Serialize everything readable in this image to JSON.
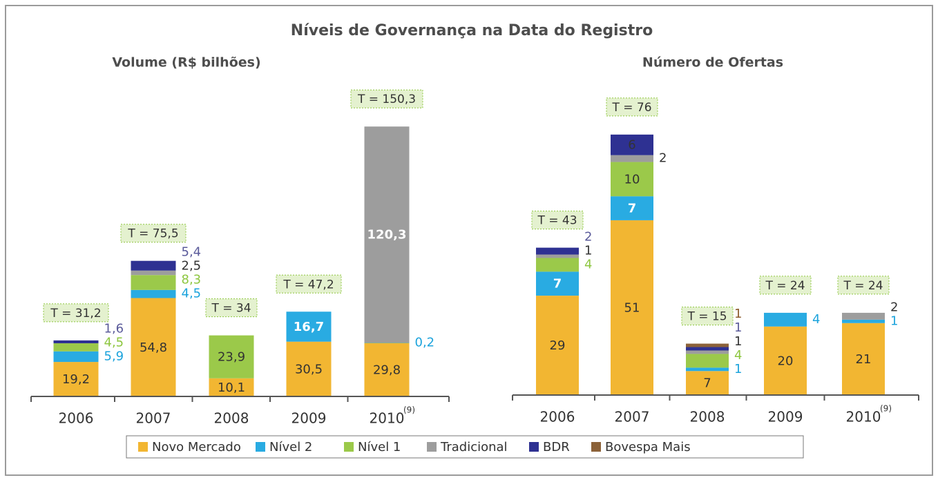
{
  "title": "Níveis de Governança na Data do Registro",
  "legend_position": "bottom",
  "chart_data": [
    {
      "type": "bar",
      "stacked": true,
      "title": "Volume (R$ bilhões)",
      "categories": [
        "2006",
        "2007",
        "2008",
        "2009",
        "2010"
      ],
      "category_superscripts": [
        null,
        null,
        null,
        null,
        "(9)"
      ],
      "ylim": [
        0,
        160
      ],
      "series": [
        {
          "name": "Novo Mercado",
          "color": "#f2b632",
          "values": [
            19.2,
            54.8,
            10.1,
            30.5,
            29.8
          ],
          "value_labels": [
            "19,2",
            "54,8",
            "10,1",
            "30,5",
            "29,8"
          ]
        },
        {
          "name": "Nível 2",
          "color": "#29abe2",
          "values": [
            5.9,
            4.5,
            null,
            16.7,
            0.2
          ],
          "value_labels": [
            "5,9",
            "4,5",
            null,
            "16,7",
            "0,2"
          ]
        },
        {
          "name": "Nível 1",
          "color": "#9bc94a",
          "values": [
            4.5,
            8.3,
            23.9,
            null,
            null
          ],
          "value_labels": [
            "4,5",
            "8,3",
            "23,9",
            null,
            null
          ]
        },
        {
          "name": "Tradicional",
          "color": "#9d9d9d",
          "values": [
            null,
            2.5,
            null,
            null,
            120.3
          ],
          "value_labels": [
            null,
            "2,5",
            null,
            null,
            "120,3"
          ]
        },
        {
          "name": "BDR",
          "color": "#2e3192",
          "values": [
            1.6,
            5.4,
            null,
            null,
            null
          ],
          "value_labels": [
            "1,6",
            "5,4",
            null,
            null,
            null
          ]
        },
        {
          "name": "Bovespa Mais",
          "color": "#8c6239",
          "values": [
            null,
            null,
            null,
            null,
            null
          ],
          "value_labels": [
            null,
            null,
            null,
            null,
            null
          ]
        }
      ],
      "totals": [
        31.2,
        75.5,
        34,
        47.2,
        150.3
      ],
      "total_labels": [
        "T = 31,2",
        "T = 75,5",
        "T = 34",
        "T = 47,2",
        "T = 150,3"
      ]
    },
    {
      "type": "bar",
      "stacked": true,
      "title": "Número de Ofertas",
      "categories": [
        "2006",
        "2007",
        "2008",
        "2009",
        "2010"
      ],
      "category_superscripts": [
        null,
        null,
        null,
        null,
        "(9)"
      ],
      "ylim": [
        0,
        80
      ],
      "series": [
        {
          "name": "Novo Mercado",
          "color": "#f2b632",
          "values": [
            29,
            51,
            7,
            20,
            21
          ]
        },
        {
          "name": "Nível 2",
          "color": "#29abe2",
          "values": [
            7,
            7,
            1,
            4,
            1
          ]
        },
        {
          "name": "Nível 1",
          "color": "#9bc94a",
          "values": [
            4,
            10,
            4,
            null,
            null
          ]
        },
        {
          "name": "Tradicional",
          "color": "#9d9d9d",
          "values": [
            1,
            2,
            1,
            null,
            2
          ]
        },
        {
          "name": "BDR",
          "color": "#2e3192",
          "values": [
            2,
            6,
            1,
            null,
            null
          ]
        },
        {
          "name": "Bovespa Mais",
          "color": "#8c6239",
          "values": [
            null,
            null,
            1,
            null,
            null
          ]
        }
      ],
      "totals": [
        43,
        76,
        15,
        24,
        24
      ],
      "total_labels": [
        "T = 43",
        "T = 76",
        "T = 15",
        "T = 24",
        "T = 24"
      ]
    }
  ]
}
